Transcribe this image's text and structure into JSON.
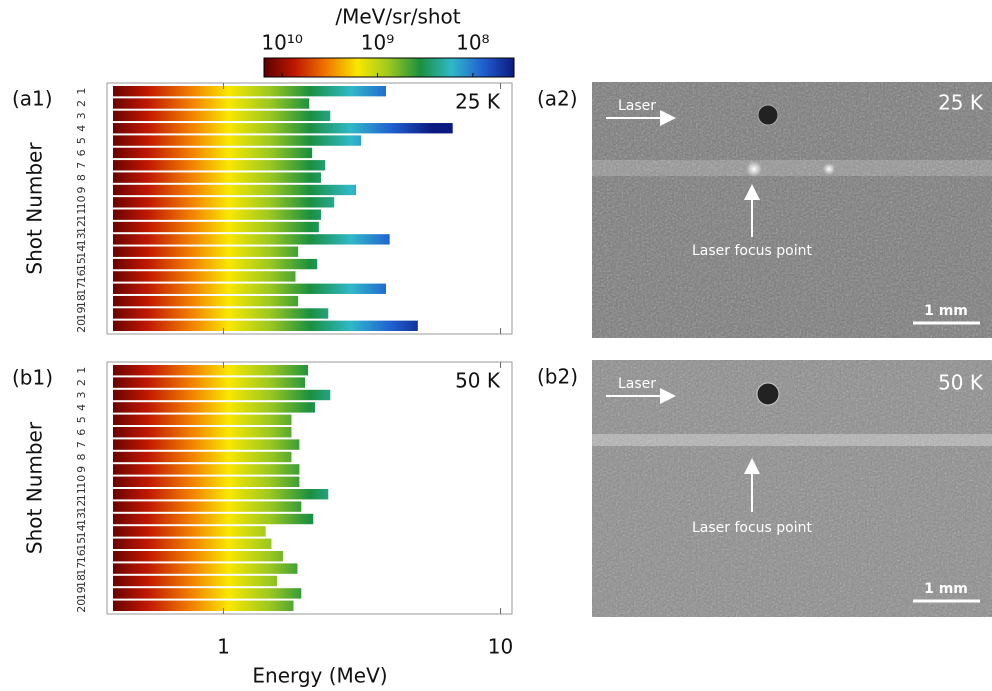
{
  "chart_data": [
    {
      "type": "bar",
      "panel_label": "(a1)",
      "annotation": "25 K",
      "y_label": "Shot Number",
      "categories": [
        "1",
        "2",
        "3",
        "4",
        "5",
        "6",
        "7",
        "8",
        "9",
        "10",
        "11",
        "12",
        "13",
        "14",
        "15",
        "16",
        "17",
        "18",
        "19",
        "20"
      ],
      "values": [
        3.86,
        2.04,
        2.43,
        6.72,
        3.14,
        2.09,
        2.33,
        2.25,
        3.01,
        2.51,
        2.25,
        2.21,
        3.98,
        1.86,
        2.18,
        1.82,
        3.86,
        1.86,
        2.39,
        5.03
      ],
      "xlim": [
        0.38,
        11
      ],
      "xticks": [
        1,
        10
      ],
      "log_x": true
    },
    {
      "type": "bar",
      "panel_label": "(b1)",
      "annotation": "50 K",
      "y_label": "Shot Number",
      "x_label": "Energy (MeV)",
      "categories": [
        "1",
        "2",
        "3",
        "4",
        "5",
        "6",
        "7",
        "8",
        "9",
        "10",
        "11",
        "12",
        "13",
        "14",
        "15",
        "16",
        "17",
        "18",
        "19",
        "20"
      ],
      "values": [
        2.02,
        1.97,
        2.43,
        2.14,
        1.76,
        1.76,
        1.88,
        1.76,
        1.88,
        1.88,
        2.39,
        1.91,
        2.11,
        1.42,
        1.49,
        1.64,
        1.85,
        1.56,
        1.91,
        1.79
      ],
      "xlim": [
        0.38,
        11
      ],
      "xticks": [
        1,
        10
      ],
      "log_x": true
    }
  ],
  "colorbar": {
    "title": "/MeV/sr/shot",
    "lim": [
      15500000000,
      37000000
    ],
    "ticks": [
      {
        "value": 10000000000,
        "label": "10¹⁰"
      },
      {
        "value": 1000000000,
        "label": "10⁹"
      },
      {
        "value": 100000000,
        "label": "10⁸"
      }
    ],
    "colormap": [
      "#5a0000",
      "#c01800",
      "#f07800",
      "#f8e800",
      "#9cc820",
      "#1a9040",
      "#30b8c8",
      "#2060d0",
      "#0a1a80"
    ]
  },
  "images": [
    {
      "panel_label": "(a2)",
      "condition": "25 K",
      "arrow_label": "Laser",
      "focus_label": "Laser focus point",
      "scale_label": "1 mm"
    },
    {
      "panel_label": "(b2)",
      "condition": "50 K",
      "arrow_label": "Laser",
      "focus_label": "Laser focus point",
      "scale_label": "1 mm"
    }
  ]
}
